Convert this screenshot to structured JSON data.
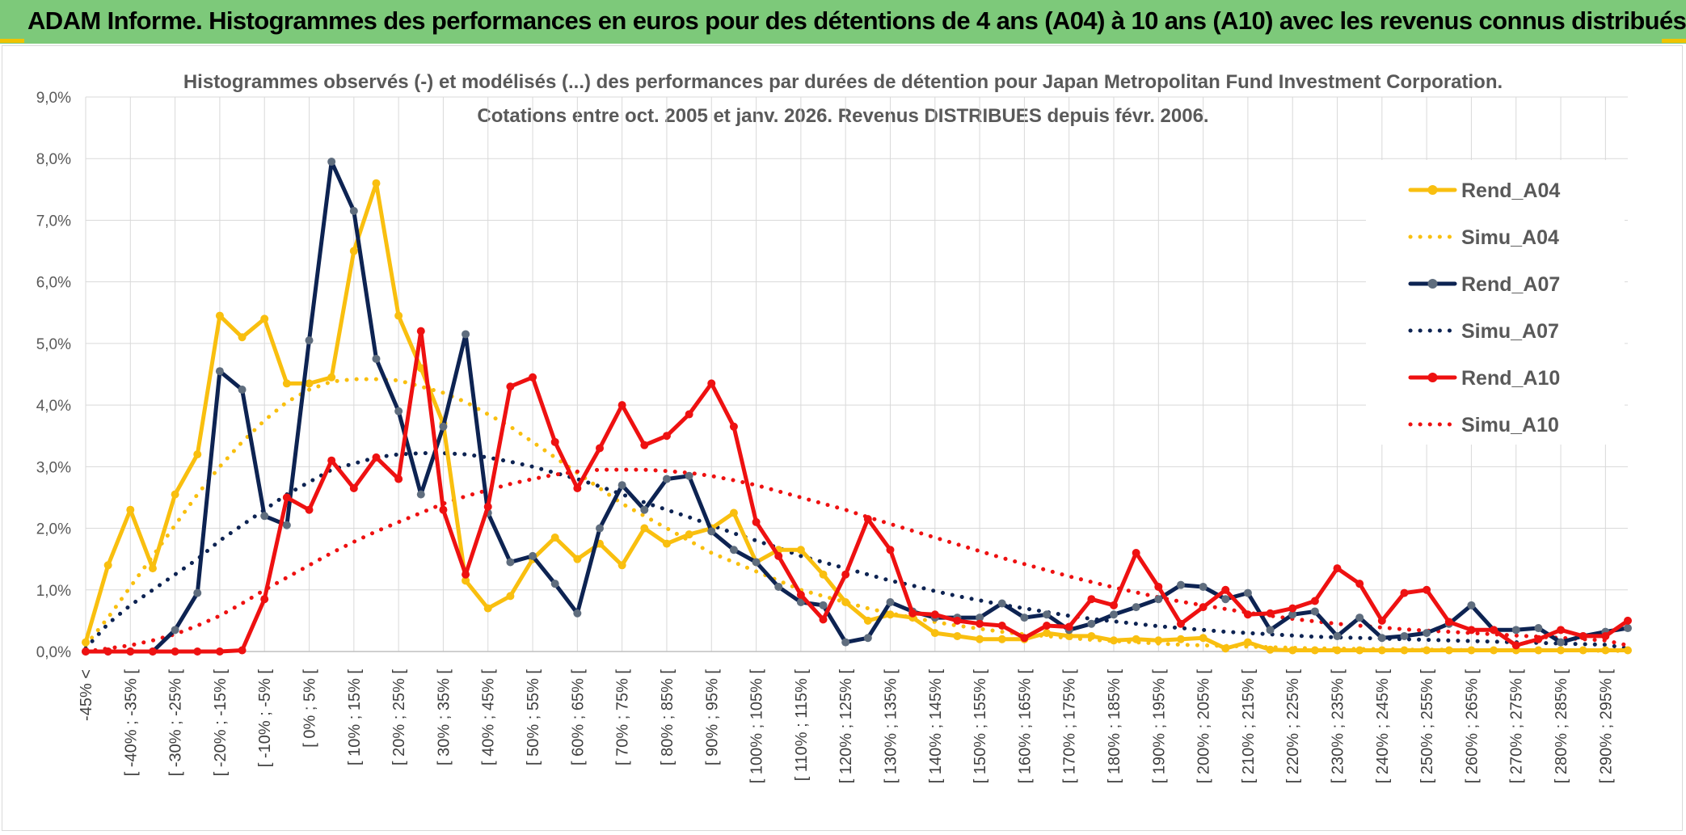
{
  "header": {
    "title": "ADAM Informe. Histogrammes des performances en euros pour des détentions de 4 ans (A04) à 10 ans (A10) avec les revenus connus distribués"
  },
  "colors": {
    "banner": "#7dc97a",
    "A04": "#f9bf0f",
    "A07": "#0d2352",
    "A10": "#ee1111",
    "A07_marker": "#5f6d7e"
  },
  "chart_data": {
    "type": "line",
    "title": "Histogrammes observés (-) et modélisés (...) des performances par durées de détention pour Japan Metropolitan Fund Investment Corporation.",
    "subtitle": "Cotations entre oct. 2005 et janv. 2026. Revenus DISTRIBUES depuis févr. 2006.",
    "ylim": [
      0,
      9
    ],
    "yticks": [
      "0,0%",
      "1,0%",
      "2,0%",
      "3,0%",
      "4,0%",
      "5,0%",
      "6,0%",
      "7,0%",
      "8,0%",
      "9,0%"
    ],
    "xticks": [
      "-45% <",
      "[ -40% ; -35% [",
      "[ -30% ; -25% [",
      "[ -20% ; -15% [",
      "[ -10% ; -5% [",
      "[ 0% ; 5% [",
      "[ 10% ; 15% [",
      "[ 20% ; 25% [",
      "[ 30% ; 35% [",
      "[ 40% ; 45% [",
      "[ 50% ; 55% [",
      "[ 60% ; 65% [",
      "[ 70% ; 75% [",
      "[ 80% ; 85% [",
      "[ 90% ; 95% [",
      "[ 100% ; 105% [",
      "[ 110% ; 115% [",
      "[ 120% ; 125% [",
      "[ 130% ; 135% [",
      "[ 140% ; 145% [",
      "[ 150% ; 155% [",
      "[ 160% ; 165% [",
      "[ 170% ; 175% [",
      "[ 180% ; 185% [",
      "[ 190% ; 195% [",
      "[ 200% ; 205% [",
      "[ 210% ; 215% [",
      "[ 220% ; 225% [",
      "[ 230% ; 235% [",
      "[ 240% ; 245% [",
      "[ 250% ; 255% [",
      "[ 260% ; 265% [",
      "[ 270% ; 275% [",
      "[ 280% ; 285% [",
      "[ 290% ; 295% ["
    ],
    "grid": true,
    "legend_position": "right",
    "series": [
      {
        "name": "Rend_A04",
        "style": "solid",
        "markers": true,
        "color": "#f9bf0f",
        "values": [
          0.15,
          1.4,
          2.3,
          1.35,
          2.55,
          3.2,
          5.45,
          5.1,
          5.4,
          4.35,
          4.35,
          4.45,
          6.5,
          7.6,
          5.45,
          4.6,
          3.7,
          1.15,
          0.7,
          0.9,
          1.5,
          1.85,
          1.5,
          1.75,
          1.4,
          2.0,
          1.75,
          1.9,
          2.0,
          2.25,
          1.45,
          1.65,
          1.65,
          1.25,
          0.8,
          0.5,
          0.6,
          0.55,
          0.3,
          0.25,
          0.2,
          0.2,
          0.2,
          0.3,
          0.25,
          0.25,
          0.18,
          0.2,
          0.18,
          0.2,
          0.22,
          0.05,
          0.15,
          0.03,
          0.02,
          0.02,
          0.02,
          0.02,
          0.02,
          0.02,
          0.02,
          0.02,
          0.02,
          0.02,
          0.02,
          0.02,
          0.02,
          0.02,
          0.02,
          0.02
        ]
      },
      {
        "name": "Simu_A04",
        "style": "dotted",
        "markers": false,
        "color": "#f9bf0f",
        "values": [
          0.1,
          0.55,
          1.05,
          1.55,
          2.05,
          2.55,
          3.0,
          3.4,
          3.75,
          4.05,
          4.25,
          4.38,
          4.42,
          4.42,
          4.4,
          4.3,
          4.2,
          4.05,
          3.85,
          3.65,
          3.4,
          3.15,
          2.9,
          2.65,
          2.4,
          2.2,
          2.0,
          1.8,
          1.6,
          1.45,
          1.3,
          1.15,
          1.0,
          0.9,
          0.8,
          0.7,
          0.62,
          0.55,
          0.48,
          0.42,
          0.37,
          0.32,
          0.28,
          0.25,
          0.22,
          0.19,
          0.17,
          0.15,
          0.13,
          0.11,
          0.1,
          0.09,
          0.08,
          0.07,
          0.06,
          0.05,
          0.05,
          0.04,
          0.04,
          0.03,
          0.03,
          0.03,
          0.02,
          0.02,
          0.02,
          0.02,
          0.02,
          0.02,
          0.01,
          0.01
        ]
      },
      {
        "name": "Rend_A07",
        "style": "solid",
        "markers": true,
        "color": "#0d2352",
        "values": [
          0.0,
          0.0,
          0.0,
          0.0,
          0.35,
          0.95,
          4.55,
          4.25,
          2.2,
          2.05,
          5.05,
          7.95,
          7.15,
          4.75,
          3.9,
          2.55,
          3.65,
          5.15,
          2.25,
          1.45,
          1.55,
          1.1,
          0.62,
          2.0,
          2.7,
          2.3,
          2.8,
          2.85,
          1.95,
          1.65,
          1.45,
          1.05,
          0.8,
          0.75,
          0.15,
          0.22,
          0.8,
          0.65,
          0.55,
          0.55,
          0.55,
          0.78,
          0.55,
          0.6,
          0.35,
          0.45,
          0.6,
          0.72,
          0.85,
          1.08,
          1.05,
          0.85,
          0.95,
          0.35,
          0.6,
          0.65,
          0.25,
          0.55,
          0.22,
          0.25,
          0.3,
          0.45,
          0.75,
          0.35,
          0.35,
          0.38,
          0.15,
          0.25,
          0.32,
          0.38
        ]
      },
      {
        "name": "Simu_A07",
        "style": "dotted",
        "markers": false,
        "color": "#0d2352",
        "values": [
          0.05,
          0.45,
          0.75,
          1.0,
          1.25,
          1.5,
          1.8,
          2.05,
          2.3,
          2.55,
          2.75,
          2.95,
          3.05,
          3.15,
          3.2,
          3.22,
          3.22,
          3.2,
          3.15,
          3.08,
          3.0,
          2.9,
          2.8,
          2.68,
          2.55,
          2.42,
          2.3,
          2.18,
          2.05,
          1.92,
          1.8,
          1.68,
          1.55,
          1.45,
          1.35,
          1.25,
          1.15,
          1.07,
          0.98,
          0.9,
          0.83,
          0.76,
          0.7,
          0.64,
          0.58,
          0.53,
          0.49,
          0.45,
          0.41,
          0.38,
          0.35,
          0.32,
          0.3,
          0.28,
          0.26,
          0.24,
          0.23,
          0.22,
          0.21,
          0.2,
          0.19,
          0.18,
          0.17,
          0.16,
          0.15,
          0.14,
          0.13,
          0.12,
          0.11,
          0.05
        ]
      },
      {
        "name": "Rend_A10",
        "style": "solid",
        "markers": true,
        "color": "#ee1111",
        "values": [
          0.0,
          0.0,
          0.0,
          0.0,
          0.0,
          0.0,
          0.0,
          0.02,
          0.85,
          2.5,
          2.3,
          3.1,
          2.65,
          3.15,
          2.8,
          5.2,
          2.3,
          1.25,
          2.35,
          4.3,
          4.45,
          3.4,
          2.65,
          3.3,
          4.0,
          3.35,
          3.5,
          3.85,
          4.35,
          3.65,
          2.1,
          1.55,
          0.92,
          0.52,
          1.25,
          2.15,
          1.65,
          0.62,
          0.6,
          0.5,
          0.45,
          0.42,
          0.22,
          0.42,
          0.4,
          0.85,
          0.75,
          1.6,
          1.05,
          0.45,
          0.72,
          1.0,
          0.6,
          0.62,
          0.7,
          0.82,
          1.35,
          1.1,
          0.5,
          0.95,
          1.0,
          0.48,
          0.35,
          0.35,
          0.1,
          0.2,
          0.35,
          0.25,
          0.25,
          0.5
        ]
      },
      {
        "name": "Simu_A10",
        "style": "dotted",
        "markers": false,
        "color": "#ee1111",
        "values": [
          0.0,
          0.05,
          0.1,
          0.18,
          0.28,
          0.42,
          0.58,
          0.78,
          1.0,
          1.2,
          1.4,
          1.6,
          1.78,
          1.95,
          2.1,
          2.25,
          2.4,
          2.52,
          2.62,
          2.72,
          2.8,
          2.87,
          2.92,
          2.95,
          2.95,
          2.95,
          2.93,
          2.9,
          2.85,
          2.78,
          2.7,
          2.6,
          2.5,
          2.4,
          2.3,
          2.18,
          2.07,
          1.96,
          1.85,
          1.74,
          1.63,
          1.52,
          1.42,
          1.32,
          1.22,
          1.13,
          1.04,
          0.96,
          0.88,
          0.81,
          0.75,
          0.69,
          0.63,
          0.58,
          0.53,
          0.49,
          0.45,
          0.42,
          0.39,
          0.36,
          0.34,
          0.32,
          0.3,
          0.28,
          0.26,
          0.24,
          0.22,
          0.2,
          0.18,
          0.1
        ]
      }
    ]
  }
}
